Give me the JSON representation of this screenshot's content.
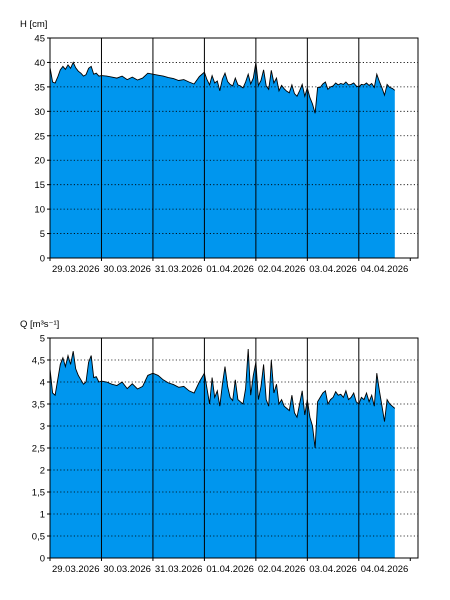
{
  "chart_data": [
    {
      "type": "area",
      "title": "",
      "ylabel": "H [cm]",
      "xlabel": "",
      "ylim": [
        0,
        45
      ],
      "yticks": [
        "0",
        "5",
        "10",
        "15",
        "20",
        "25",
        "30",
        "35",
        "40",
        "45"
      ],
      "grid": true,
      "fill_color": "#0096ee",
      "line_color": "#000000",
      "x_range_days": [
        0,
        7.15
      ],
      "x_tick_labels": [
        "29.03.2026",
        "30.03.2026",
        "31.03.2026",
        "01.04.2026",
        "02.04.2026",
        "03.04.2026",
        "04.04.2026"
      ],
      "series": [
        {
          "x": [
            0,
            0.05,
            0.1,
            0.15,
            0.2,
            0.25,
            0.3,
            0.35,
            0.4,
            0.45,
            0.5,
            0.55,
            0.6,
            0.65,
            0.7,
            0.75,
            0.8,
            0.85,
            0.9,
            0.95,
            1.0,
            1.1,
            1.2,
            1.3,
            1.4,
            1.5,
            1.6,
            1.7,
            1.8,
            1.9,
            2.0,
            2.1,
            2.2,
            2.3,
            2.4,
            2.5,
            2.6,
            2.7,
            2.8,
            2.9,
            3.0,
            3.05,
            3.1,
            3.15,
            3.2,
            3.25,
            3.3,
            3.35,
            3.4,
            3.45,
            3.5,
            3.55,
            3.6,
            3.65,
            3.7,
            3.75,
            3.8,
            3.85,
            3.9,
            3.95,
            4.0,
            4.05,
            4.1,
            4.15,
            4.2,
            4.25,
            4.3,
            4.35,
            4.4,
            4.45,
            4.5,
            4.55,
            4.6,
            4.65,
            4.7,
            4.75,
            4.8,
            4.85,
            4.9,
            4.95,
            5.0,
            5.05,
            5.1,
            5.15,
            5.2,
            5.25,
            5.3,
            5.35,
            5.4,
            5.45,
            5.5,
            5.55,
            5.6,
            5.65,
            5.7,
            5.75,
            5.8,
            5.85,
            5.9,
            5.95,
            6.0,
            6.05,
            6.1,
            6.15,
            6.2,
            6.25,
            6.3,
            6.35,
            6.4,
            6.45,
            6.5,
            6.55,
            6.6,
            6.65,
            6.7
          ],
          "values": [
            39,
            36,
            35.8,
            37,
            38.5,
            39.2,
            38.6,
            39.5,
            38.8,
            40,
            38.9,
            38.2,
            37.8,
            37.2,
            37.5,
            38.8,
            39.2,
            37.6,
            37.8,
            37.2,
            37.3,
            37.2,
            37,
            36.8,
            37.2,
            36.5,
            37,
            36.4,
            36.8,
            37.8,
            37.6,
            37.4,
            37.2,
            36.9,
            36.7,
            36.3,
            36.5,
            36,
            35.6,
            37.1,
            38,
            36.5,
            35.4,
            37.3,
            35.8,
            36.2,
            34.2,
            36.6,
            37.8,
            36.1,
            35.5,
            35.2,
            36.8,
            35.4,
            35.2,
            34.8,
            36,
            37.6,
            35.6,
            36.8,
            40,
            35.3,
            36.3,
            38.5,
            35.2,
            34.5,
            38.4,
            35.8,
            36.8,
            34.2,
            35.3,
            34.6,
            34.1,
            33.8,
            35.4,
            33.6,
            33.1,
            34.2,
            35.5,
            33.1,
            34.8,
            32.8,
            31.5,
            29.6,
            34.9,
            34.9,
            35.6,
            36,
            34.5,
            35,
            35.2,
            35.8,
            35.4,
            35.7,
            35.5,
            36,
            35.4,
            35.5,
            35.8,
            35.2,
            35,
            35.5,
            35.4,
            35.8,
            35.3,
            35.7,
            34.9,
            37.6,
            36.1,
            34.8,
            33.3,
            35.5,
            34.9,
            34.7,
            34.3
          ]
        }
      ]
    },
    {
      "type": "area",
      "title": "",
      "ylabel": "Q [m³s⁻¹]",
      "xlabel": "",
      "ylim": [
        0,
        5
      ],
      "yticks": [
        "0",
        "0,5",
        "1",
        "1,5",
        "2",
        "2,5",
        "3",
        "3,5",
        "4",
        "4,5",
        "5"
      ],
      "grid": true,
      "fill_color": "#0096ee",
      "line_color": "#000000",
      "x_range_days": [
        0,
        7.15
      ],
      "x_tick_labels": [
        "29.03.2026",
        "30.03.2026",
        "31.03.2026",
        "01.04.2026",
        "02.04.2026",
        "03.04.2026",
        "04.04.2026"
      ],
      "series": [
        {
          "x": [
            0,
            0.05,
            0.1,
            0.15,
            0.2,
            0.25,
            0.3,
            0.35,
            0.4,
            0.45,
            0.5,
            0.55,
            0.6,
            0.65,
            0.7,
            0.75,
            0.8,
            0.85,
            0.9,
            0.95,
            1.0,
            1.1,
            1.2,
            1.3,
            1.4,
            1.5,
            1.6,
            1.7,
            1.8,
            1.9,
            2.0,
            2.1,
            2.2,
            2.3,
            2.4,
            2.5,
            2.6,
            2.7,
            2.8,
            2.9,
            3.0,
            3.05,
            3.1,
            3.15,
            3.2,
            3.25,
            3.3,
            3.35,
            3.4,
            3.45,
            3.5,
            3.55,
            3.6,
            3.65,
            3.7,
            3.75,
            3.8,
            3.85,
            3.9,
            3.95,
            4.0,
            4.05,
            4.1,
            4.15,
            4.2,
            4.25,
            4.3,
            4.35,
            4.4,
            4.45,
            4.5,
            4.55,
            4.6,
            4.65,
            4.7,
            4.75,
            4.8,
            4.85,
            4.9,
            4.95,
            5.0,
            5.05,
            5.1,
            5.15,
            5.2,
            5.25,
            5.3,
            5.35,
            5.4,
            5.45,
            5.5,
            5.55,
            5.6,
            5.65,
            5.7,
            5.75,
            5.8,
            5.85,
            5.9,
            5.95,
            6.0,
            6.05,
            6.1,
            6.15,
            6.2,
            6.25,
            6.3,
            6.35,
            6.4,
            6.45,
            6.5,
            6.55,
            6.6,
            6.65,
            6.7
          ],
          "values": [
            4.3,
            3.75,
            3.7,
            4.05,
            4.4,
            4.55,
            4.35,
            4.6,
            4.4,
            4.7,
            4.3,
            4.15,
            4.05,
            3.95,
            4.0,
            4.45,
            4.6,
            4.1,
            4.12,
            4.0,
            4.02,
            4.0,
            3.95,
            3.92,
            4.0,
            3.85,
            3.96,
            3.84,
            3.9,
            4.15,
            4.2,
            4.15,
            4.05,
            3.98,
            3.94,
            3.88,
            3.9,
            3.8,
            3.75,
            4.0,
            4.2,
            3.85,
            3.5,
            4.1,
            3.65,
            3.8,
            3.45,
            3.95,
            4.35,
            3.9,
            3.65,
            3.58,
            4.05,
            3.6,
            3.55,
            3.5,
            3.85,
            4.75,
            3.7,
            4.15,
            4.45,
            3.6,
            3.9,
            4.4,
            3.6,
            3.45,
            4.5,
            3.75,
            3.95,
            3.5,
            3.6,
            3.45,
            3.4,
            3.35,
            3.7,
            3.3,
            3.2,
            3.5,
            3.8,
            3.25,
            3.6,
            3.2,
            3.0,
            2.5,
            3.55,
            3.65,
            3.75,
            3.8,
            3.5,
            3.6,
            3.65,
            3.78,
            3.7,
            3.72,
            3.65,
            3.8,
            3.6,
            3.65,
            3.75,
            3.55,
            3.5,
            3.65,
            3.6,
            3.75,
            3.55,
            3.7,
            3.45,
            4.2,
            3.8,
            3.45,
            3.1,
            3.6,
            3.5,
            3.45,
            3.4
          ]
        }
      ]
    }
  ]
}
